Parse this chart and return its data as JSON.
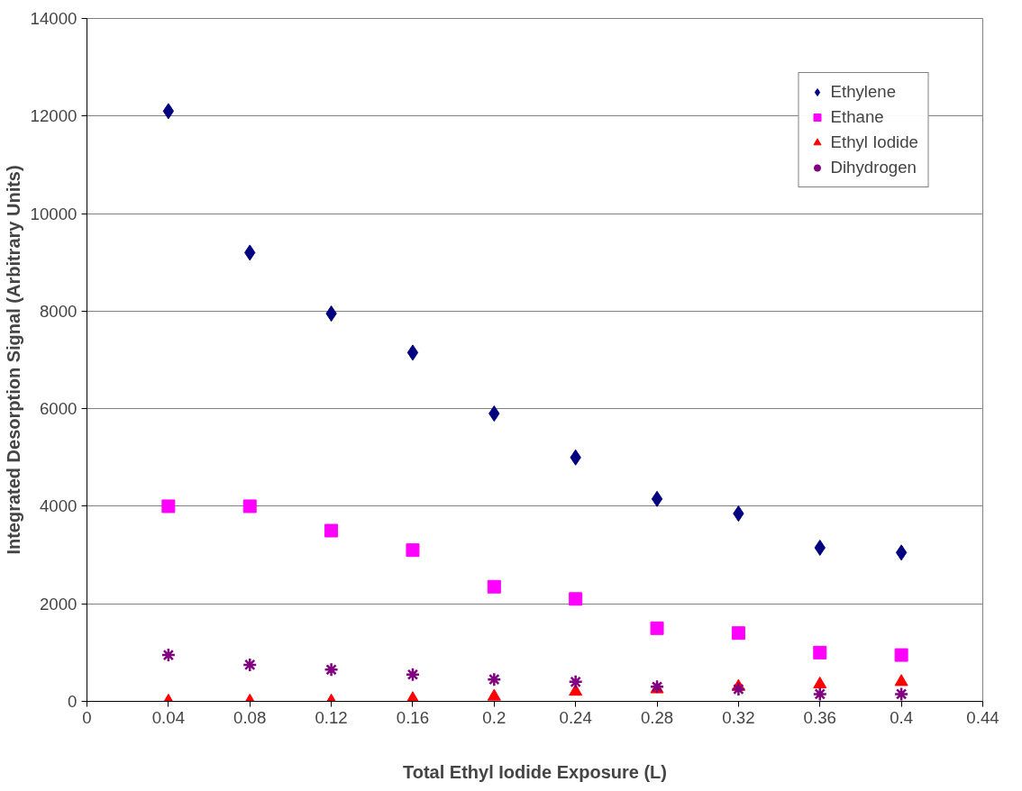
{
  "chart_data": {
    "type": "scatter",
    "xlabel": "Total Ethyl Iodide Exposure (L)",
    "ylabel": "Integrated Desorption Signal (Arbitrary Units)",
    "x": [
      0.04,
      0.08,
      0.12,
      0.16,
      0.2,
      0.24,
      0.28,
      0.32,
      0.36,
      0.4
    ],
    "series": [
      {
        "name": "Ethylene",
        "color": "#000080",
        "marker": "diamond",
        "values": [
          12100,
          9200,
          7950,
          7150,
          5900,
          5000,
          4150,
          3850,
          3150,
          3050
        ]
      },
      {
        "name": "Ethane",
        "color": "#ff00ff",
        "marker": "square",
        "values": [
          4000,
          4000,
          3500,
          3100,
          2350,
          2100,
          1500,
          1400,
          1000,
          950
        ]
      },
      {
        "name": "Ethyl Iodide",
        "color": "#ff0000",
        "marker": "triangle",
        "values": [
          0,
          0,
          0,
          50,
          100,
          200,
          250,
          300,
          350,
          400
        ]
      },
      {
        "name": "Dihydrogen",
        "color": "#800080",
        "marker": "cross",
        "values": [
          950,
          750,
          650,
          550,
          450,
          400,
          300,
          250,
          150,
          150
        ]
      }
    ],
    "xlim": [
      0,
      0.44
    ],
    "xticks": [
      0,
      0.04,
      0.08,
      0.12,
      0.16,
      0.2,
      0.24,
      0.28,
      0.32,
      0.36,
      0.4,
      0.44
    ],
    "ylim": [
      0,
      14000
    ],
    "yticks": [
      0,
      2000,
      4000,
      6000,
      8000,
      10000,
      12000,
      14000
    ],
    "grid": "y",
    "legend": "top right"
  }
}
